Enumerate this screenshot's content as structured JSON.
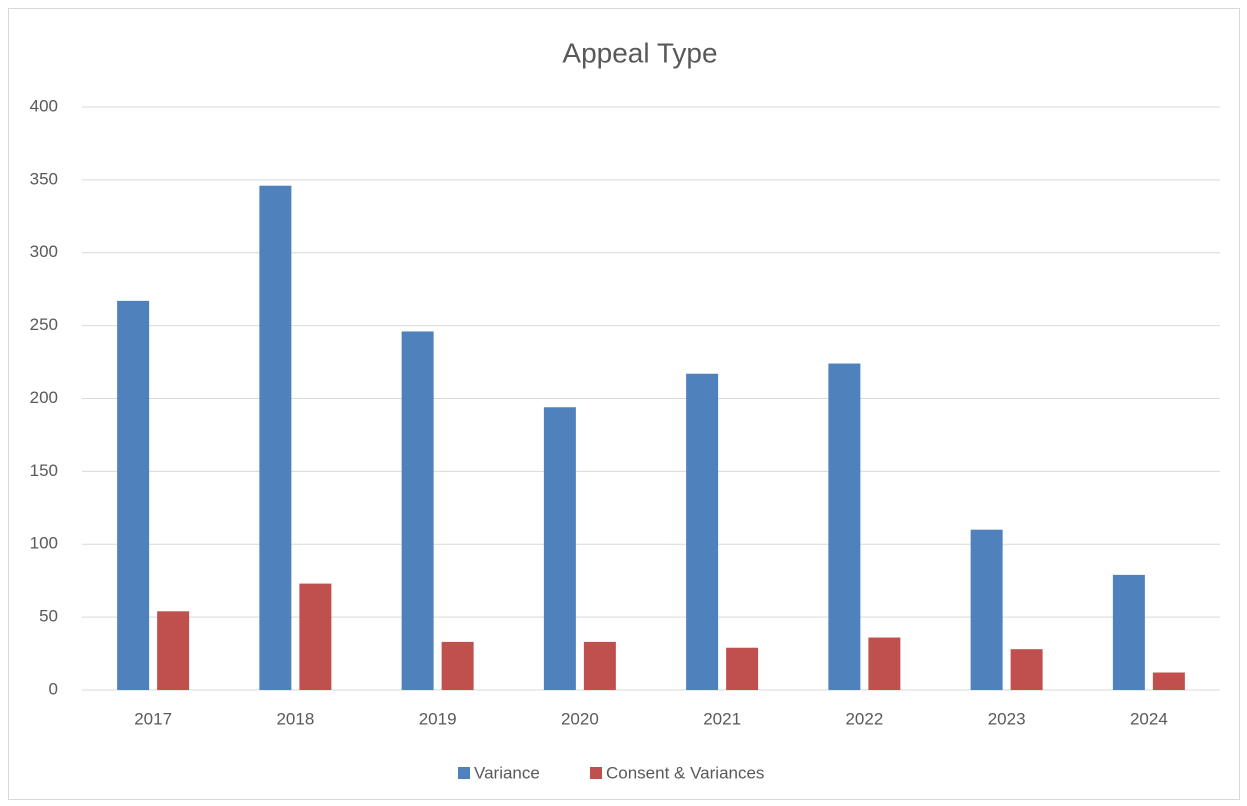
{
  "chart_data": {
    "type": "bar",
    "title": "Appeal Type",
    "categories": [
      "2017",
      "2018",
      "2019",
      "2020",
      "2021",
      "2022",
      "2023",
      "2024"
    ],
    "series": [
      {
        "name": "Variance",
        "color": "#4f81bd",
        "values": [
          267,
          346,
          246,
          194,
          217,
          224,
          110,
          79
        ]
      },
      {
        "name": "Consent & Variances",
        "color": "#c0504d",
        "values": [
          54,
          73,
          33,
          33,
          29,
          36,
          28,
          12
        ]
      }
    ],
    "ylim": [
      0,
      400
    ],
    "yticks": [
      0,
      50,
      100,
      150,
      200,
      250,
      300,
      350,
      400
    ],
    "grid": true,
    "legend": "bottom"
  }
}
